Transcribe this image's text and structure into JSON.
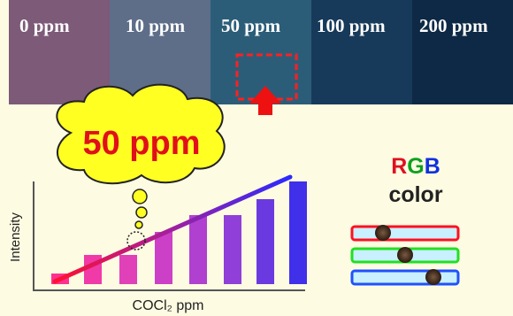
{
  "photo_strip": {
    "labels": [
      "0 ppm",
      "10 ppm",
      "50 ppm",
      "100 ppm",
      "200 ppm"
    ]
  },
  "bubble": {
    "text": "50 ppm"
  },
  "plot": {
    "y_label": "Intensity",
    "x_label": "COCl₂ ppm"
  },
  "legend": {
    "r": "R",
    "g": "G",
    "b": "B",
    "word": "color"
  }
}
